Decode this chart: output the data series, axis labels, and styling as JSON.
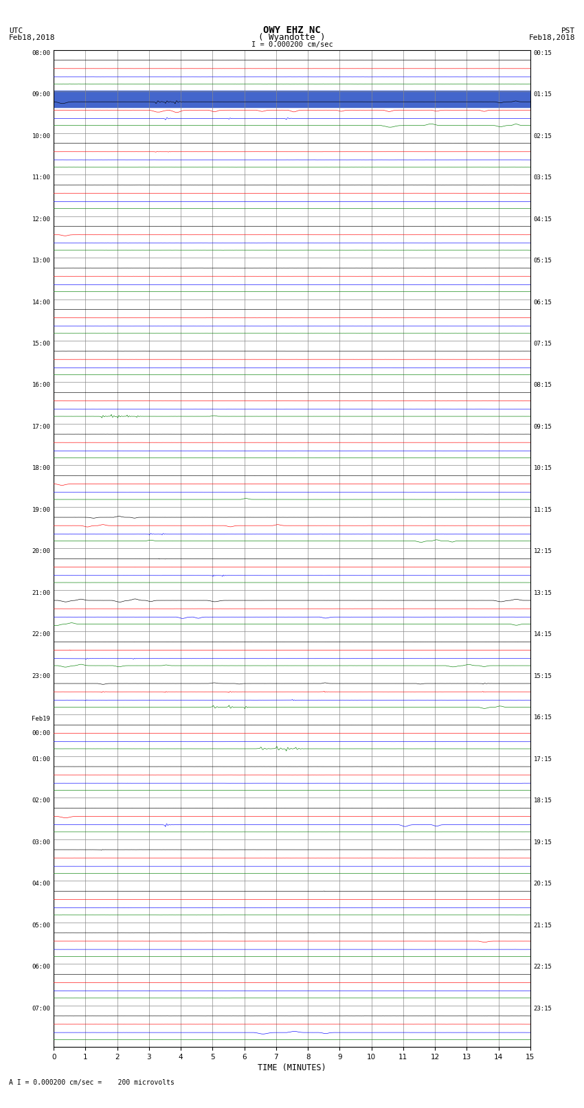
{
  "title_line1": "OWY EHZ NC",
  "title_line2": "( Wyandotte )",
  "scale_label": "I = 0.000200 cm/sec",
  "footer_label": "A I = 0.000200 cm/sec =    200 microvolts",
  "utc_header1": "UTC",
  "utc_header2": "Feb18,2018",
  "pst_header1": "PST",
  "pst_header2": "Feb18,2018",
  "xlabel": "TIME (MINUTES)",
  "xlim": [
    0,
    15
  ],
  "xticks": [
    0,
    1,
    2,
    3,
    4,
    5,
    6,
    7,
    8,
    9,
    10,
    11,
    12,
    13,
    14,
    15
  ],
  "background_color": "#ffffff",
  "num_rows": 24,
  "utc_times": [
    "08:00",
    "09:00",
    "10:00",
    "11:00",
    "12:00",
    "13:00",
    "14:00",
    "15:00",
    "16:00",
    "17:00",
    "18:00",
    "19:00",
    "20:00",
    "21:00",
    "22:00",
    "23:00",
    "Feb19\n00:00",
    "01:00",
    "02:00",
    "03:00",
    "04:00",
    "05:00",
    "06:00",
    "07:00"
  ],
  "pst_times": [
    "00:15",
    "01:15",
    "02:15",
    "03:15",
    "04:15",
    "05:15",
    "06:15",
    "07:15",
    "08:15",
    "09:15",
    "10:15",
    "11:15",
    "12:15",
    "13:15",
    "14:15",
    "15:15",
    "16:15",
    "17:15",
    "18:15",
    "19:15",
    "20:15",
    "21:15",
    "22:15",
    "23:15"
  ],
  "highlight_row": 1,
  "sub_traces": [
    "black",
    "red",
    "blue",
    "green"
  ],
  "sub_offsets": [
    0.75,
    0.55,
    0.35,
    0.18
  ],
  "noise_amp": 0.006
}
